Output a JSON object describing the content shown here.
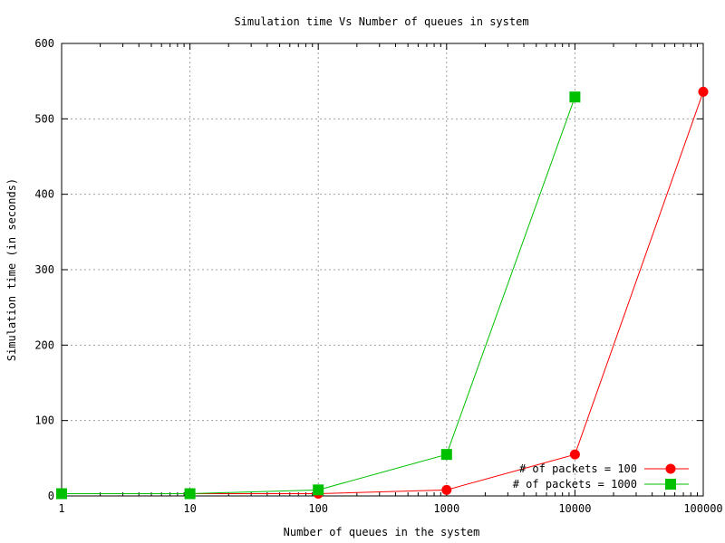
{
  "chart_data": {
    "type": "line",
    "title": "Simulation time Vs Number of queues in system",
    "xlabel": "Number of queues in the system",
    "ylabel": "Simulation time (in seconds)",
    "x_scale": "log",
    "x": [
      1,
      10,
      100,
      1000,
      10000,
      100000
    ],
    "x_tick_labels": [
      "1",
      "10",
      "100",
      "1000",
      "10000",
      "100000"
    ],
    "xlim": [
      1,
      100000
    ],
    "ylim": [
      0,
      600
    ],
    "y_ticks": [
      0,
      100,
      200,
      300,
      400,
      500,
      600
    ],
    "grid": true,
    "legend_position": "bottom-right",
    "series": [
      {
        "name": "# of packets = 100",
        "color": "#ff0000",
        "marker": "circle",
        "x": [
          1,
          10,
          100,
          1000,
          10000,
          100000
        ],
        "values": [
          3,
          3,
          3,
          8,
          55,
          536
        ]
      },
      {
        "name": "# of packets = 1000",
        "color": "#00c000",
        "marker": "square",
        "x": [
          1,
          10,
          100,
          1000,
          10000
        ],
        "values": [
          3,
          3,
          8,
          55,
          529
        ]
      }
    ]
  }
}
